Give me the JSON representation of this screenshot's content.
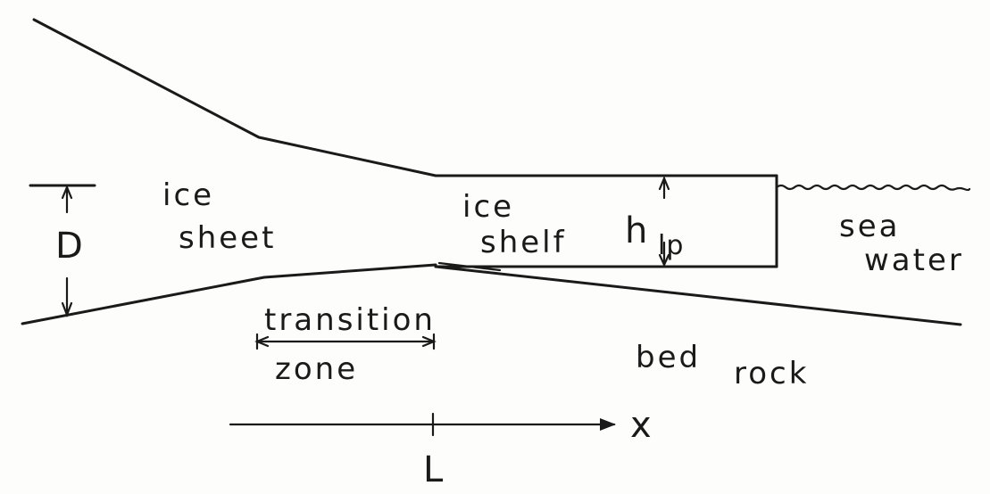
{
  "labels": {
    "ice_sheet_1": "ice",
    "ice_sheet_2": "sheet",
    "ice_shelf_1": "ice",
    "ice_shelf_2": "shelf",
    "thickness_h": "h",
    "thickness_sub": "lp",
    "sea_1": "sea",
    "sea_2": "water",
    "depth": "D",
    "transition_1": "transition",
    "transition_2": "zone",
    "bed_1": "bed",
    "bed_2": "rock",
    "axis_x": "x",
    "grounding_line": "L"
  }
}
